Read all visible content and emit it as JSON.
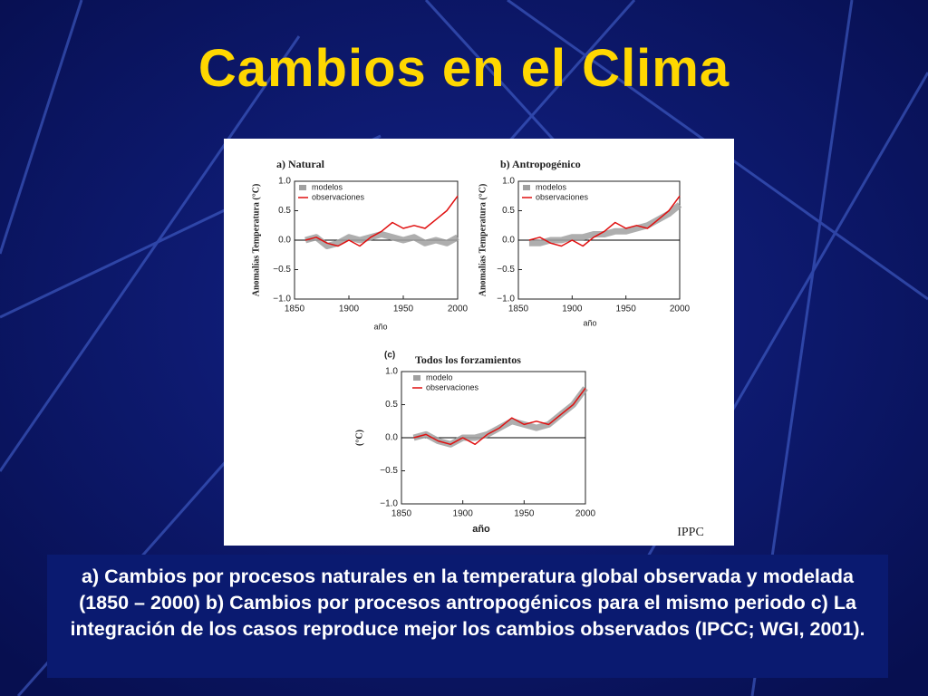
{
  "title": "Cambios en el Clima",
  "caption": "a) Cambios por procesos naturales en la temperatura global observada y modelada (1850 – 2000) b) Cambios por procesos antropogénicos para el mismo periodo c) La integración de los casos reproduce mejor los cambios observados (IPCC; WGI, 2001).",
  "source": "IPPC",
  "chart_data": [
    {
      "type": "line",
      "title": "a) Natural",
      "y_label": "Anomalías Temperatura (°C)",
      "x_label": "año",
      "x": [
        1860,
        1870,
        1880,
        1890,
        1900,
        1910,
        1920,
        1930,
        1940,
        1950,
        1960,
        1970,
        1980,
        1990,
        2000
      ],
      "series": [
        {
          "name": "modelos",
          "color": "#a0a0a0",
          "values": [
            0.0,
            0.05,
            -0.1,
            -0.05,
            0.05,
            0.0,
            0.05,
            0.1,
            0.05,
            0.0,
            0.05,
            -0.05,
            0.0,
            -0.05,
            0.05
          ]
        },
        {
          "name": "observaciones",
          "color": "#e01010",
          "values": [
            0.0,
            0.05,
            -0.05,
            -0.1,
            0.0,
            -0.1,
            0.05,
            0.15,
            0.3,
            0.2,
            0.25,
            0.2,
            0.35,
            0.5,
            0.75
          ]
        }
      ],
      "xlim": [
        1850,
        2000
      ],
      "ylim": [
        -1,
        1
      ],
      "xticks": [
        1850,
        1900,
        1950,
        2000
      ],
      "yticks": [
        {
          "value": 1,
          "label": "1.0"
        },
        {
          "value": 0.5,
          "label": "0.5"
        },
        {
          "value": 0,
          "label": "0.0"
        },
        {
          "value": -0.5,
          "label": "−0.5"
        },
        {
          "value": -1,
          "label": "−1.0"
        }
      ]
    },
    {
      "type": "line",
      "title": "b) Antropogénico",
      "y_label": "Anomalías Temperatura (°C)",
      "x_label": "año",
      "x": [
        1860,
        1870,
        1880,
        1890,
        1900,
        1910,
        1920,
        1930,
        1940,
        1950,
        1960,
        1970,
        1980,
        1990,
        2000
      ],
      "series": [
        {
          "name": "modelos",
          "color": "#a0a0a0",
          "values": [
            -0.05,
            -0.05,
            0.0,
            0.0,
            0.05,
            0.05,
            0.1,
            0.1,
            0.15,
            0.15,
            0.2,
            0.25,
            0.35,
            0.45,
            0.6
          ]
        },
        {
          "name": "observaciones",
          "color": "#e01010",
          "values": [
            0.0,
            0.05,
            -0.05,
            -0.1,
            0.0,
            -0.1,
            0.05,
            0.15,
            0.3,
            0.2,
            0.25,
            0.2,
            0.35,
            0.5,
            0.75
          ]
        }
      ],
      "xlim": [
        1850,
        2000
      ],
      "ylim": [
        -1,
        1
      ],
      "xticks": [
        1850,
        1900,
        1950,
        2000
      ],
      "yticks": [
        {
          "value": 1,
          "label": "1.0"
        },
        {
          "value": 0.5,
          "label": "0.5"
        },
        {
          "value": 0,
          "label": "0.0"
        },
        {
          "value": -0.5,
          "label": "−0.5"
        },
        {
          "value": -1,
          "label": "−1.0"
        }
      ]
    },
    {
      "type": "line",
      "panel": "(c)",
      "title": "Todos los forzamientos",
      "y_label": "(°C)",
      "x_label": "año",
      "x": [
        1860,
        1870,
        1880,
        1890,
        1900,
        1910,
        1920,
        1930,
        1940,
        1950,
        1960,
        1970,
        1980,
        1990,
        2000
      ],
      "series": [
        {
          "name": "modelo",
          "color": "#a0a0a0",
          "values": [
            0.0,
            0.05,
            -0.05,
            -0.1,
            0.0,
            0.0,
            0.05,
            0.15,
            0.25,
            0.2,
            0.15,
            0.2,
            0.35,
            0.5,
            0.75
          ]
        },
        {
          "name": "observaciones",
          "color": "#e01010",
          "values": [
            0.0,
            0.05,
            -0.05,
            -0.1,
            0.0,
            -0.1,
            0.05,
            0.15,
            0.3,
            0.2,
            0.25,
            0.2,
            0.35,
            0.5,
            0.75
          ]
        }
      ],
      "xlim": [
        1850,
        2000
      ],
      "ylim": [
        -1,
        1
      ],
      "xticks": [
        1850,
        1900,
        1950,
        2000
      ],
      "yticks": [
        {
          "value": 1,
          "label": "1.0"
        },
        {
          "value": 0.5,
          "label": "0.5"
        },
        {
          "value": 0,
          "label": "0.0"
        },
        {
          "value": -0.5,
          "label": "−0.5"
        },
        {
          "value": -1,
          "label": "−1.0"
        }
      ]
    }
  ]
}
